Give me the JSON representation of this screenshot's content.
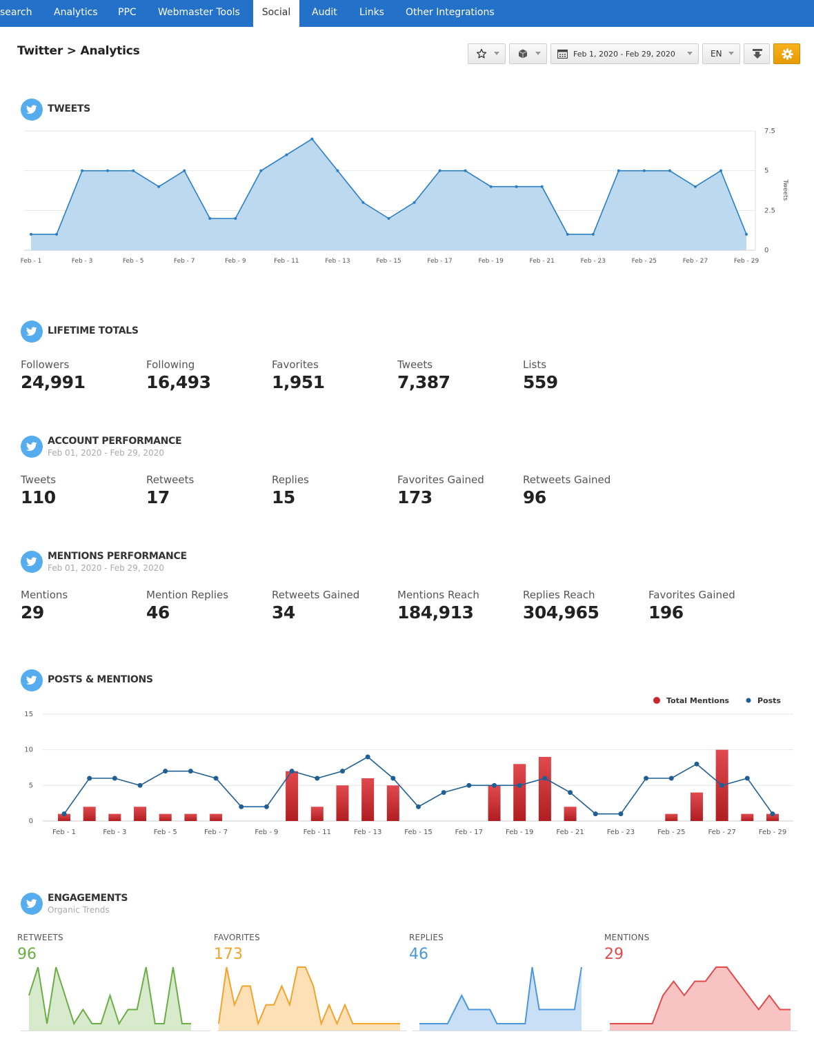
{
  "nav": {
    "tabs": [
      {
        "label": "search"
      },
      {
        "label": "Analytics"
      },
      {
        "label": "PPC"
      },
      {
        "label": "Webmaster Tools"
      },
      {
        "label": "Social"
      },
      {
        "label": "Audit"
      },
      {
        "label": "Links"
      },
      {
        "label": "Other Integrations"
      }
    ],
    "active_tab": "Social",
    "bar_color": "#2371c9"
  },
  "header": {
    "title": "Twitter > Analytics",
    "toolbar": {
      "favorite_icon": "star-icon",
      "cube_icon": "cube-icon",
      "calendar_icon": "calendar-icon",
      "date_range": "Feb 1, 2020 - Feb 29, 2020",
      "language": "EN",
      "download_icon": "download-icon",
      "settings_icon": "gear-icon"
    }
  },
  "tweets_section": {
    "title": "TWEETS",
    "icon": "twitter-icon"
  },
  "lifetime": {
    "title": "LIFETIME TOTALS",
    "stats": [
      {
        "label": "Followers",
        "value": "24,991"
      },
      {
        "label": "Following",
        "value": "16,493"
      },
      {
        "label": "Favorites",
        "value": "1,951"
      },
      {
        "label": "Tweets",
        "value": "7,387"
      },
      {
        "label": "Lists",
        "value": "559"
      }
    ]
  },
  "account_performance": {
    "title": "ACCOUNT PERFORMANCE",
    "subtitle": "Feb 01, 2020 - Feb 29, 2020",
    "stats": [
      {
        "label": "Tweets",
        "value": "110"
      },
      {
        "label": "Retweets",
        "value": "17"
      },
      {
        "label": "Replies",
        "value": "15"
      },
      {
        "label": "Favorites Gained",
        "value": "173"
      },
      {
        "label": "Retweets Gained",
        "value": "96"
      }
    ]
  },
  "mentions_performance": {
    "title": "MENTIONS PERFORMANCE",
    "subtitle": "Feb 01, 2020 - Feb 29, 2020",
    "stats": [
      {
        "label": "Mentions",
        "value": "29"
      },
      {
        "label": "Mention Replies",
        "value": "46"
      },
      {
        "label": "Retweets Gained",
        "value": "34"
      },
      {
        "label": "Mentions Reach",
        "value": "184,913"
      },
      {
        "label": "Replies Reach",
        "value": "304,965"
      },
      {
        "label": "Favorites Gained",
        "value": "196"
      }
    ]
  },
  "posts_mentions": {
    "title": "POSTS & MENTIONS"
  },
  "engagements": {
    "title": "ENGAGEMENTS",
    "subtitle": "Organic Trends",
    "cards": [
      {
        "label": "RETWEETS",
        "value": "96",
        "color": "#6aad45",
        "fill": "#d7eacb"
      },
      {
        "label": "FAVORITES",
        "value": "173",
        "color": "#f2a32c",
        "fill": "#fde0b6"
      },
      {
        "label": "REPLIES",
        "value": "46",
        "color": "#4b97dc",
        "fill": "#c8dff5"
      },
      {
        "label": "MENTIONS",
        "value": "29",
        "color": "#e24a4a",
        "fill": "#f7c3c3"
      }
    ]
  },
  "chart_data": [
    {
      "type": "area",
      "x": [
        "Feb 1",
        "Feb 2",
        "Feb 3",
        "Feb 4",
        "Feb 5",
        "Feb 6",
        "Feb 7",
        "Feb 8",
        "Feb 9",
        "Feb 10",
        "Feb 11",
        "Feb 12",
        "Feb 13",
        "Feb 14",
        "Feb 15",
        "Feb 16",
        "Feb 17",
        "Feb 18",
        "Feb 19",
        "Feb 20",
        "Feb 21",
        "Feb 22",
        "Feb 23",
        "Feb 24",
        "Feb 25",
        "Feb 26",
        "Feb 27",
        "Feb 28",
        "Feb 29"
      ],
      "tick_labels": [
        "Feb - 1",
        "Feb - 3",
        "Feb - 5",
        "Feb - 7",
        "Feb - 9",
        "Feb - 11",
        "Feb - 13",
        "Feb - 15",
        "Feb - 17",
        "Feb - 19",
        "Feb - 21",
        "Feb - 23",
        "Feb - 25",
        "Feb - 27",
        "Feb - 29"
      ],
      "y_ticks": [
        "7.5",
        "5",
        "2.5",
        "0"
      ],
      "series": [
        {
          "name": "Tweets",
          "values": [
            1,
            1,
            5,
            5,
            5,
            4,
            5,
            2,
            2,
            5,
            6,
            7,
            5,
            3,
            2,
            3,
            5,
            5,
            4,
            4,
            4,
            1,
            1,
            5,
            5,
            5,
            4,
            5,
            1
          ]
        }
      ],
      "ylabel": "Tweets",
      "ylim": [
        0,
        7.5
      ],
      "line_color": "#2a7fc4",
      "fill_color": "#bdd9ef",
      "grid": true
    },
    {
      "type": "bar",
      "x": [
        "Feb 1",
        "Feb 2",
        "Feb 3",
        "Feb 4",
        "Feb 5",
        "Feb 6",
        "Feb 7",
        "Feb 8",
        "Feb 9",
        "Feb 10",
        "Feb 11",
        "Feb 12",
        "Feb 13",
        "Feb 14",
        "Feb 15",
        "Feb 16",
        "Feb 17",
        "Feb 18",
        "Feb 19",
        "Feb 20",
        "Feb 21",
        "Feb 22",
        "Feb 23",
        "Feb 24",
        "Feb 25",
        "Feb 26",
        "Feb 27",
        "Feb 28",
        "Feb 29"
      ],
      "tick_labels": [
        "Feb - 1",
        "Feb - 3",
        "Feb - 5",
        "Feb - 7",
        "Feb - 9",
        "Feb - 11",
        "Feb - 13",
        "Feb - 15",
        "Feb - 17",
        "Feb - 19",
        "Feb - 21",
        "Feb - 23",
        "Feb - 25",
        "Feb - 27",
        "Feb - 29"
      ],
      "y_ticks": [
        "15",
        "10",
        "5",
        "0"
      ],
      "series": [
        {
          "name": "Total Mentions",
          "kind": "bar",
          "color": "#c8282d",
          "values": [
            1,
            2,
            1,
            2,
            1,
            1,
            1,
            0,
            0,
            7,
            2,
            5,
            6,
            5,
            0,
            0,
            0,
            5,
            8,
            9,
            2,
            0,
            0,
            0,
            1,
            4,
            10,
            1,
            1
          ]
        },
        {
          "name": "Posts",
          "kind": "line",
          "color": "#1f5f93",
          "values": [
            1,
            6,
            6,
            5,
            7,
            7,
            6,
            2,
            2,
            7,
            6,
            7,
            9,
            6,
            2,
            4,
            5,
            5,
            5,
            6,
            4,
            1,
            1,
            6,
            6,
            8,
            5,
            6,
            1
          ]
        }
      ],
      "ylim": [
        0,
        15
      ],
      "legend": "top-right",
      "grid": true
    },
    {
      "type": "area",
      "name": "RETWEETS",
      "values": [
        3,
        5,
        1,
        5,
        3,
        1,
        2,
        1,
        1,
        3,
        1,
        2,
        2,
        5,
        1,
        1,
        5,
        1,
        1
      ]
    },
    {
      "type": "area",
      "name": "FAVORITES",
      "values": [
        1,
        4,
        2,
        3,
        3,
        1,
        2,
        2,
        3,
        2,
        4,
        4,
        3,
        1,
        2,
        1,
        2,
        1,
        1,
        1,
        1,
        1,
        1,
        1
      ]
    },
    {
      "type": "area",
      "name": "REPLIES",
      "values": [
        1,
        1,
        1,
        1,
        1,
        2,
        3,
        2,
        2,
        2,
        2,
        1,
        1,
        1,
        1,
        1,
        5,
        2,
        2,
        2,
        2,
        2,
        2,
        5
      ]
    },
    {
      "type": "area",
      "name": "MENTIONS",
      "values": [
        1,
        1,
        1,
        1,
        1,
        3,
        4,
        3,
        4,
        4,
        5,
        5,
        4,
        3,
        2,
        3,
        2,
        2
      ]
    }
  ]
}
